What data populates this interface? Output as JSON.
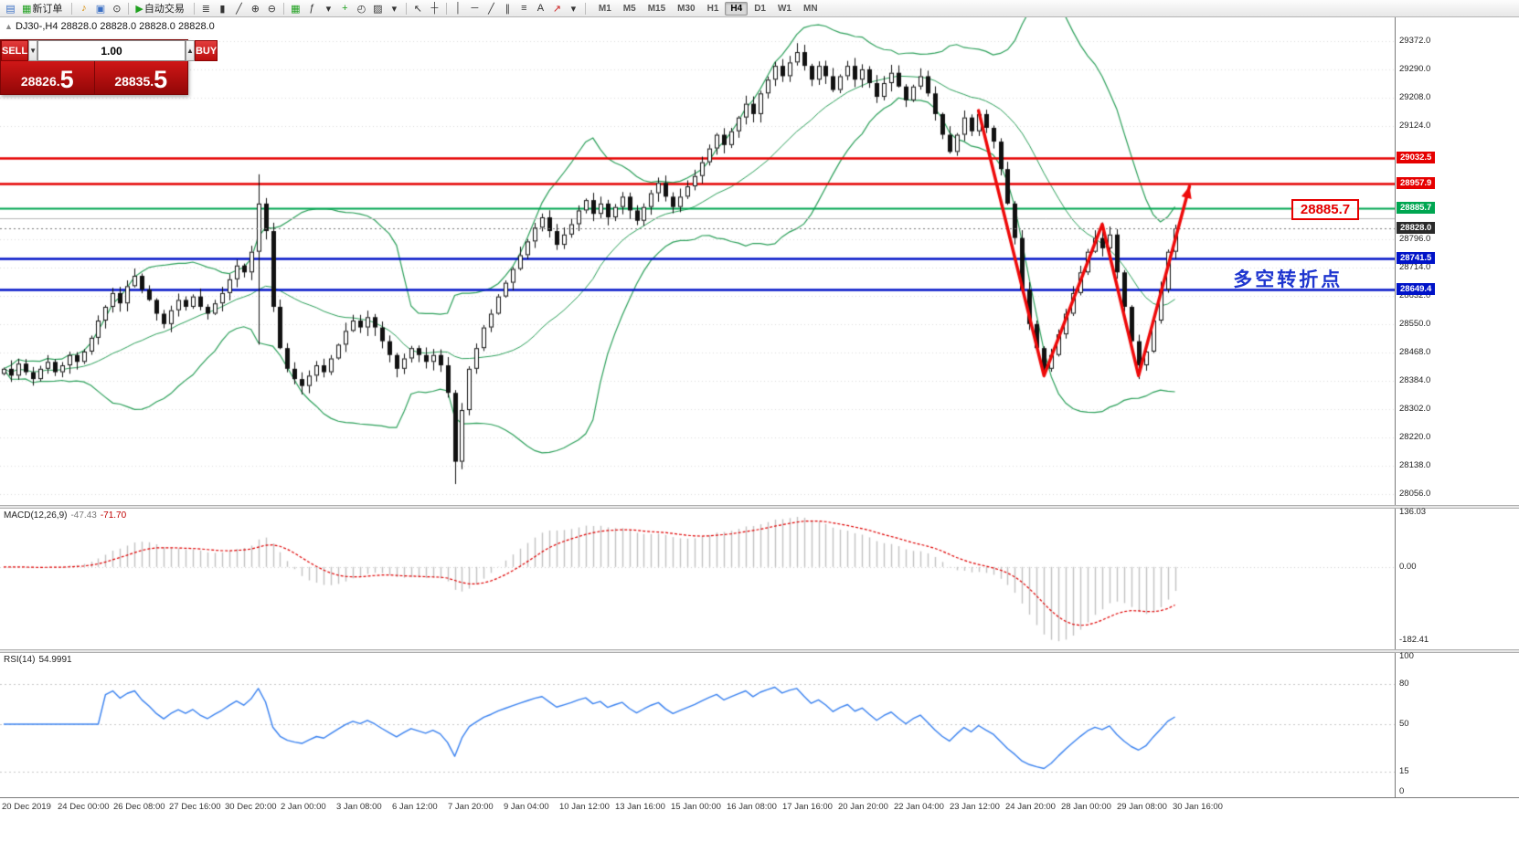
{
  "toolbar": {
    "terminal_glyph": "▤",
    "new_order": {
      "glyph": "▦",
      "label": "新订单"
    },
    "sound_glyph": "♪",
    "profile_glyph": "▣",
    "search_glyph": "⊙",
    "autotrade": {
      "glyph": "▶",
      "label": "自动交易"
    },
    "chart_bar_glyph": "≣",
    "chart_candle_glyph": "▮",
    "chart_line_glyph": "╱",
    "zoom_in_glyph": "⊕",
    "zoom_out_glyph": "⊖",
    "tile_glyph": "▦",
    "indicators_glyph": "ƒ",
    "new_chart_glyph": "+",
    "clock_glyph": "◴",
    "template_glyph": "▨",
    "dropdown_glyph": "▾",
    "cursor_glyph": "↖",
    "crosshair_glyph": "┼",
    "vline_glyph": "│",
    "hline_glyph": "─",
    "trend_glyph": "╱",
    "channel_glyph": "∥",
    "fibo_glyph": "≡",
    "text_glyph": "A",
    "arrows_glyph": "↗",
    "timeframes": [
      "M1",
      "M5",
      "M15",
      "M30",
      "H1",
      "H4",
      "D1",
      "W1",
      "MN"
    ],
    "active_timeframe": "H4"
  },
  "chart_header": {
    "symbol": "DJ30-,H4",
    "ohlc": "28828.0 28828.0 28828.0 28828.0"
  },
  "trade_panel": {
    "sell_label": "SELL",
    "buy_label": "BUY",
    "volume": "1.00",
    "spin_down": "▼",
    "spin_up": "▲",
    "bid_small": "28826.",
    "bid_big": "5",
    "ask_small": "28835.",
    "ask_big": "5"
  },
  "annotations": {
    "turning_point": {
      "text": "多空转折点",
      "bar": 169,
      "price": 28690,
      "color": "#1e35cf"
    },
    "price_callout": {
      "text": "28885.7",
      "bar": 177,
      "price": 28883,
      "color": "#e60000"
    }
  },
  "panels": {
    "macd": {
      "label": "MACD(12,26,9)",
      "value1": "-47.43",
      "value2": "-71.70"
    },
    "rsi": {
      "label": "RSI(14)",
      "value": "54.9991"
    }
  },
  "price_axis": {
    "regular_labels": [
      {
        "text": "29372.0",
        "value": 29372
      },
      {
        "text": "29290.0",
        "value": 29290
      },
      {
        "text": "29208.0",
        "value": 29208
      },
      {
        "text": "29124.0",
        "value": 29124
      },
      {
        "text": "28796.0",
        "value": 28796
      },
      {
        "text": "28714.0",
        "value": 28714
      },
      {
        "text": "28632.0",
        "value": 28632
      },
      {
        "text": "28550.0",
        "value": 28550
      },
      {
        "text": "28468.0",
        "value": 28468
      },
      {
        "text": "28384.0",
        "value": 28384
      },
      {
        "text": "28302.0",
        "value": 28302
      },
      {
        "text": "28220.0",
        "value": 28220
      },
      {
        "text": "28138.0",
        "value": 28138
      },
      {
        "text": "28056.0",
        "value": 28056
      }
    ],
    "badges": [
      {
        "text": "29032.5",
        "value": 29032.5,
        "color": "#e60000"
      },
      {
        "text": "28957.9",
        "value": 28957.9,
        "color": "#e60000"
      },
      {
        "text": "28885.7",
        "value": 28885.7,
        "color": "#00a651"
      },
      {
        "text": "28828.0",
        "value": 28828.0,
        "color": "#2a2a2a"
      },
      {
        "text": "28741.5",
        "value": 28741.5,
        "color": "#0013c8"
      },
      {
        "text": "28649.4",
        "value": 28649.4,
        "color": "#0013c8"
      }
    ]
  },
  "macd_axis": [
    {
      "text": "136.03",
      "value": 136.03
    },
    {
      "text": "0.00",
      "value": 0
    },
    {
      "text": "-182.41",
      "value": -182.41
    }
  ],
  "rsi_axis": [
    {
      "text": "100",
      "value": 100
    },
    {
      "text": "80",
      "value": 80
    },
    {
      "text": "50",
      "value": 50
    },
    {
      "text": "15",
      "value": 15
    },
    {
      "text": "0",
      "value": 0
    }
  ],
  "time_axis": {
    "labels": [
      "20 Dec 2019",
      "24 Dec 00:00",
      "26 Dec 08:00",
      "27 Dec 16:00",
      "30 Dec 20:00",
      "2 Jan 00:00",
      "3 Jan 08:00",
      "6 Jan 12:00",
      "7 Jan 20:00",
      "9 Jan 04:00",
      "10 Jan 12:00",
      "13 Jan 16:00",
      "15 Jan 00:00",
      "16 Jan 08:00",
      "17 Jan 16:00",
      "20 Jan 20:00",
      "22 Jan 04:00",
      "23 Jan 12:00",
      "24 Jan 20:00",
      "28 Jan 00:00",
      "29 Jan 08:00",
      "30 Jan 16:00"
    ]
  },
  "chart_data": {
    "type": "candlestick",
    "symbol": "DJ30-",
    "timeframe": "H4",
    "price_range": [
      28056,
      29372
    ],
    "candles": {
      "closes": [
        28420,
        28400,
        28435,
        28410,
        28390,
        28420,
        28440,
        28410,
        28430,
        28460,
        28440,
        28470,
        28510,
        28560,
        28600,
        28640,
        28610,
        28660,
        28690,
        28650,
        28620,
        28580,
        28550,
        28590,
        28620,
        28600,
        28630,
        28600,
        28580,
        28610,
        28640,
        28680,
        28720,
        28700,
        28760,
        28900,
        28820,
        28600,
        28480,
        28420,
        28390,
        28370,
        28400,
        28430,
        28410,
        28450,
        28490,
        28530,
        28560,
        28540,
        28570,
        28540,
        28500,
        28460,
        28420,
        28450,
        28480,
        28460,
        28440,
        28460,
        28430,
        28350,
        28150,
        28300,
        28420,
        28480,
        28540,
        28580,
        28630,
        28670,
        28710,
        28750,
        28790,
        28830,
        28860,
        28820,
        28780,
        28810,
        28840,
        28880,
        28910,
        28870,
        28900,
        28860,
        28890,
        28920,
        28880,
        28850,
        28890,
        28930,
        28960,
        28920,
        28890,
        28920,
        28950,
        28980,
        29020,
        29060,
        29100,
        29070,
        29110,
        29150,
        29190,
        29160,
        29220,
        29260,
        29300,
        29270,
        29310,
        29340,
        29300,
        29260,
        29300,
        29270,
        29230,
        29270,
        29300,
        29260,
        29290,
        29250,
        29210,
        29250,
        29280,
        29240,
        29200,
        29240,
        29270,
        29220,
        29160,
        29100,
        29050,
        29100,
        29150,
        29110,
        29160,
        29120,
        29080,
        29000,
        28900,
        28800,
        28650,
        28550,
        28480,
        28420,
        28460,
        28520,
        28580,
        28640,
        28700,
        28760,
        28800,
        28770,
        28810,
        28700,
        28600,
        28500,
        28430,
        28470,
        28560,
        28650,
        28760,
        28828
      ],
      "wick_overrides": {
        "35": {
          "high": 28985,
          "low": 28490
        },
        "62": {
          "low": 28085
        },
        "109": {
          "high": 29366
        },
        "143": {
          "low": 28395
        },
        "151": {
          "high": 28845
        },
        "156": {
          "low": 28390
        }
      }
    },
    "overlays": {
      "bollinger": {
        "period": 20,
        "deviation": 2,
        "color": "#2ca05a"
      },
      "hlines": [
        {
          "price": 29032.5,
          "color": "#e60000",
          "width": 2.5
        },
        {
          "price": 28957.9,
          "color": "#e60000",
          "width": 2.5
        },
        {
          "price": 28885.7,
          "color": "#00a651",
          "width": 2
        },
        {
          "price": 28857,
          "color": "#b8b8b8",
          "width": 1
        },
        {
          "price": 28741.5,
          "color": "#0013c8",
          "width": 2.5
        },
        {
          "price": 28649.4,
          "color": "#0013c8",
          "width": 2.5
        }
      ],
      "current_price": 28828.0,
      "trend_arrow": {
        "color": "#ee0a0a",
        "width": 3.5,
        "points": [
          [
            134,
            29170
          ],
          [
            143,
            28400
          ],
          [
            151,
            28840
          ],
          [
            156,
            28400
          ],
          [
            163,
            28950
          ]
        ]
      }
    },
    "grid_values": [
      29372,
      29290,
      29208,
      29124,
      28796,
      28714,
      28632,
      28550,
      28468,
      28384,
      28302,
      28220,
      28138,
      28056
    ],
    "macd": {
      "fast": 12,
      "slow": 26,
      "signal": 9,
      "range": [
        -182.41,
        136.03
      ],
      "histogram_color": "#c2c2c2",
      "signal_color": "#e00000"
    },
    "rsi": {
      "period": 14,
      "range": [
        0,
        100
      ],
      "levels": [
        80,
        50,
        15
      ],
      "line_color": "#3a82f0"
    }
  }
}
